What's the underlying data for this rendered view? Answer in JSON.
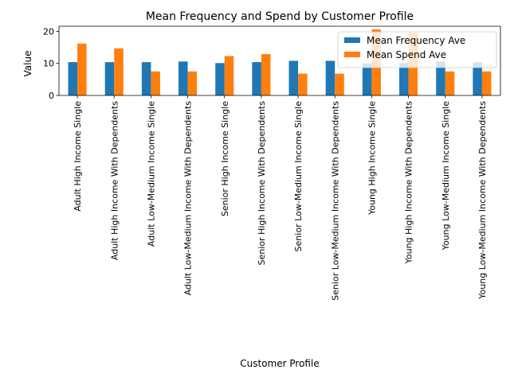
{
  "chart_data": {
    "type": "bar",
    "title": "Mean Frequency and Spend by Customer Profile",
    "xlabel": "Customer Profile",
    "ylabel": "Value",
    "ylim": [
      0,
      21.6
    ],
    "yticks": [
      0,
      10,
      20
    ],
    "grid": false,
    "legend_position": "top-right",
    "categories": [
      "Adult High Income Single",
      "Adult High Income With Dependents",
      "Adult Low-Medium Income Single",
      "Adult Low-Medium Income With Dependents",
      "Senior High Income Single",
      "Senior High Income With Dependents",
      "Senior Low-Medium Income Single",
      "Senior Low-Medium Income With Dependents",
      "Young High Income Single",
      "Young High Income With Dependents",
      "Young Low-Medium Income Single",
      "Young Low-Medium Income With Dependents"
    ],
    "series": [
      {
        "name": "Mean Frequency Ave",
        "color": "#1f77b4",
        "values": [
          10.4,
          10.4,
          10.4,
          10.6,
          10.1,
          10.4,
          10.8,
          10.8,
          10.0,
          10.1,
          10.6,
          10.4
        ]
      },
      {
        "name": "Mean Spend Ave",
        "color": "#ff7f0e",
        "values": [
          16.2,
          14.7,
          7.5,
          7.5,
          12.3,
          12.9,
          6.8,
          6.8,
          20.6,
          19.6,
          7.5,
          7.5
        ]
      }
    ]
  }
}
